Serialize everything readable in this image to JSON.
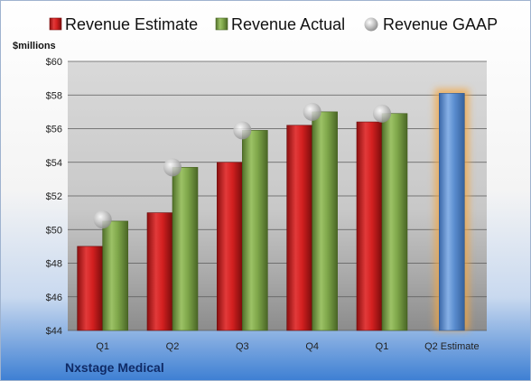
{
  "chart_data": {
    "type": "bar",
    "categories": [
      "Q1",
      "Q2",
      "Q3",
      "Q4",
      "Q1",
      "Q2 Estimate"
    ],
    "series": [
      {
        "name": "Revenue Estimate",
        "values": [
          49.0,
          51.0,
          54.0,
          56.2,
          56.4,
          null
        ]
      },
      {
        "name": "Revenue Actual",
        "values": [
          50.5,
          53.7,
          55.9,
          57.0,
          56.9,
          null
        ]
      },
      {
        "name": "Revenue GAAP",
        "values": [
          50.6,
          53.7,
          55.9,
          57.0,
          56.9,
          null
        ]
      }
    ],
    "forecast": {
      "category": "Q2 Estimate",
      "value": 58.1
    },
    "unit_label": "$millions",
    "ylim": [
      44,
      60
    ],
    "yticks": [
      "$44",
      "$46",
      "$48",
      "$50",
      "$52",
      "$54",
      "$56",
      "$58",
      "$60"
    ],
    "grid": true,
    "legend_position": "top",
    "colors": {
      "estimate": "#d42020",
      "actual": "#7fa74a",
      "gaap": "#b9b9b9",
      "forecast": "#5b8ed0",
      "forecast_glow": "#f4a640"
    }
  },
  "footer": {
    "company": "Nxstage Medical"
  }
}
